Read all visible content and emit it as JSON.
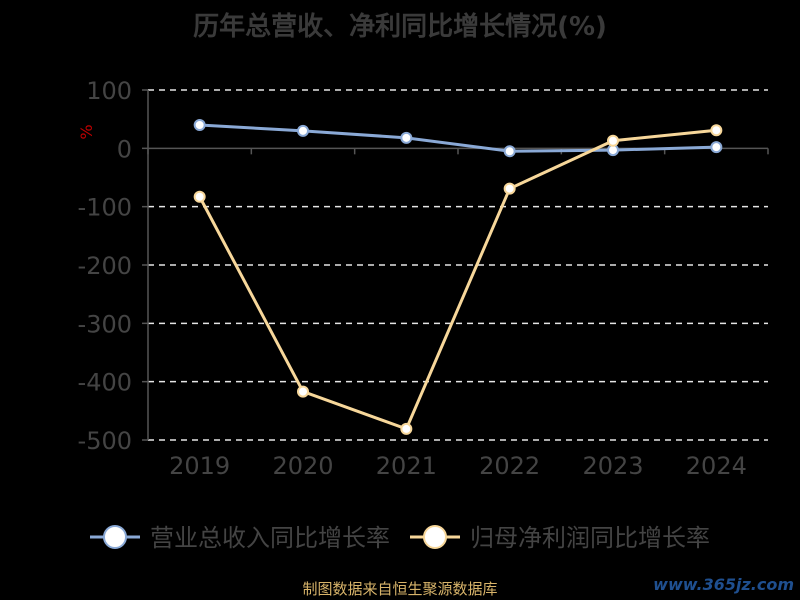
{
  "chart_data": {
    "type": "line",
    "title": "历年总营收、净利同比增长情况(%)",
    "ylabel": "%",
    "categories": [
      "2019",
      "2020",
      "2021",
      "2022",
      "2023",
      "2024"
    ],
    "ylim": [
      -500,
      100
    ],
    "yticks": [
      100,
      0,
      -100,
      -200,
      -300,
      -400,
      -500
    ],
    "grid": true,
    "legend_position": "bottom",
    "series": [
      {
        "name": "营业总收入同比增长率",
        "color": "#8aa9d6",
        "values": [
          40,
          30,
          18,
          -5,
          -3,
          2
        ]
      },
      {
        "name": "归母净利润同比增长率",
        "color": "#f7d79a",
        "values": [
          -83,
          -417,
          -481,
          -69,
          13,
          31
        ]
      }
    ]
  },
  "source": "制图数据来自恒生聚源数据库",
  "watermark": "www.365jz.com"
}
